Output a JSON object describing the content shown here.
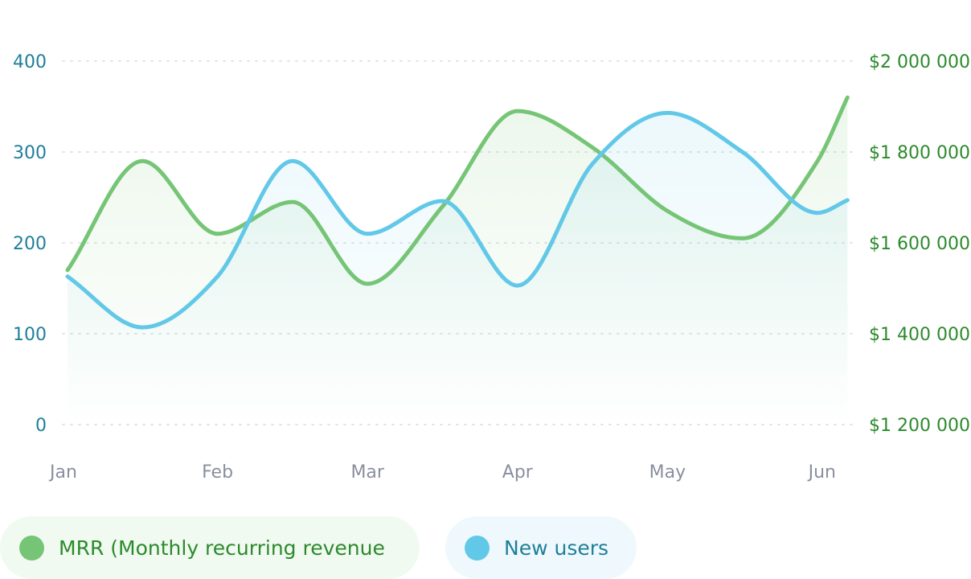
{
  "colors": {
    "mrr": "#76c576",
    "users": "#62c8e8",
    "left_axis": "#1f7f9a",
    "right_axis": "#2c8a2c",
    "x_axis": "#8a8f9e",
    "grid": "#e2e4e8"
  },
  "chart_data": {
    "type": "line",
    "categories": [
      "Jan",
      "Feb",
      "Mar",
      "Apr",
      "May",
      "Jun"
    ],
    "x": [
      0,
      0.5,
      1,
      1.5,
      2,
      2.5,
      3,
      3.5,
      4,
      4.5,
      5,
      5.2
    ],
    "y_left": {
      "ticks": [
        "0",
        "100",
        "200",
        "300",
        "400"
      ],
      "range": [
        0,
        400
      ]
    },
    "y_right": {
      "ticks": [
        "$1 200 000",
        "$1 400 000",
        "$1 600 000",
        "$1 800 000",
        "$2 000 000"
      ],
      "range": [
        1200000,
        2000000
      ]
    },
    "grid": "horizontal dotted",
    "legend_position": "bottom-left",
    "series": [
      {
        "name": "MRR (Monthly recurring revenue",
        "axis": "right",
        "values": [
          1540000,
          1780000,
          1620000,
          1690000,
          1510000,
          1680000,
          1890000,
          1810000,
          1670000,
          1610000,
          1780000,
          1920000
        ]
      },
      {
        "name": "New users",
        "axis": "left",
        "values": [
          163,
          107,
          163,
          290,
          210,
          246,
          153,
          287,
          343,
          300,
          233,
          247
        ]
      }
    ]
  }
}
